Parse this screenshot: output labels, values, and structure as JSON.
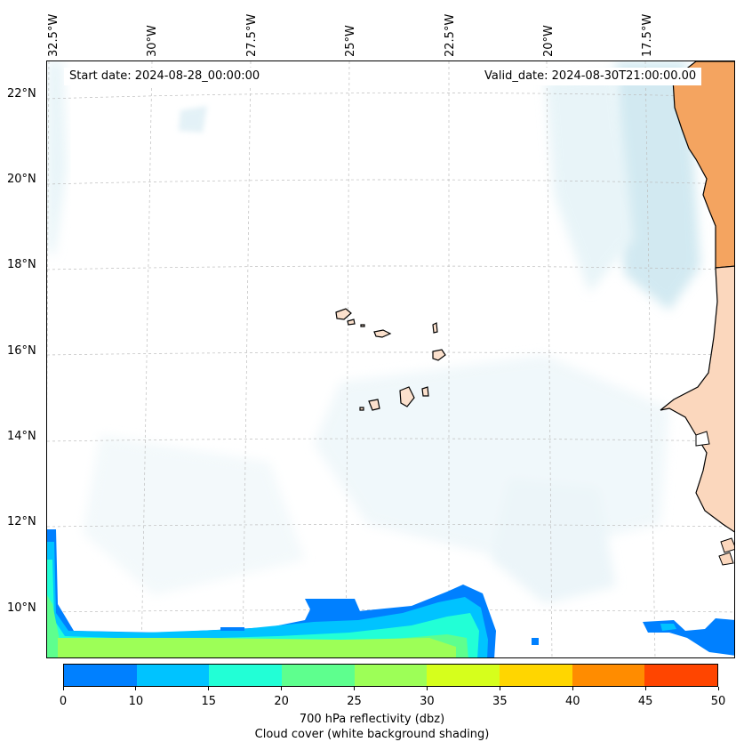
{
  "map": {
    "start_date_text": "Start date: 2024-08-28_00:00:00",
    "valid_date_text": "Valid_date: 2024-08-30T21:00:00.00",
    "lon_labels": [
      "32.5°W",
      "30°W",
      "27.5°W",
      "25°W",
      "22.5°W",
      "20°W",
      "17.5°W"
    ],
    "lat_labels": [
      "22°N",
      "20°N",
      "18°N",
      "16°N",
      "14°N",
      "12°N",
      "10°N"
    ]
  },
  "colorbar": {
    "ticks": [
      "0",
      "10",
      "15",
      "20",
      "25",
      "30",
      "35",
      "40",
      "45",
      "50"
    ],
    "colors": [
      "#0080ff",
      "#00c3ff",
      "#22ffd6",
      "#5eff8e",
      "#9dff57",
      "#d6ff1c",
      "#ffd600",
      "#ff8c00",
      "#ff4500"
    ],
    "label_line1": "700 hPa reflectivity (dbz)",
    "label_line2": "Cloud cover (white background shading)"
  },
  "theme": {
    "land_color": "#f4a460",
    "cloud_color": "#add8e6"
  }
}
